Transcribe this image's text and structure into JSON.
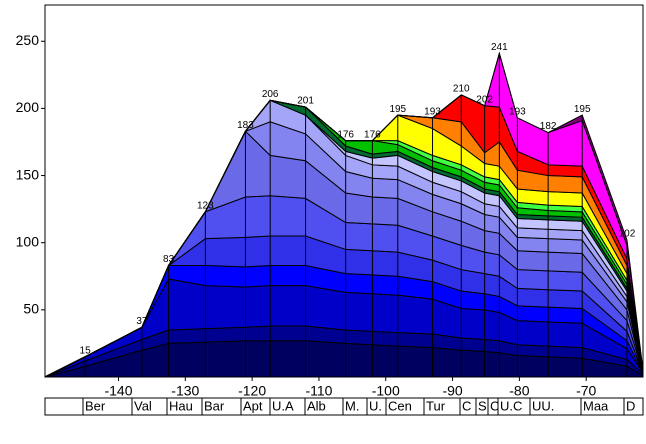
{
  "chart_data": {
    "type": "stacked_area",
    "x": [
      -151,
      -145,
      -136.5,
      -132.5,
      -127,
      -121,
      -117.3,
      -112,
      -106,
      -102,
      -98.2,
      -93,
      -88.7,
      -85.2,
      -83,
      -80.3,
      -75.7,
      -70.6,
      -63.9,
      -61.5
    ],
    "total_labels": [
      null,
      15,
      37,
      83,
      123,
      183,
      206,
      201,
      176,
      176,
      195,
      193,
      210,
      202,
      241,
      193,
      182,
      195,
      102,
      null
    ],
    "series": [
      {
        "color": "#000060",
        "values": [
          0,
          8,
          20,
          25,
          26,
          27,
          27,
          27,
          25,
          24,
          23,
          22,
          20,
          19,
          18,
          16,
          15,
          14,
          8,
          1
        ]
      },
      {
        "color": "#000090",
        "values": [
          0,
          4,
          8,
          10,
          10,
          10,
          11,
          11,
          10,
          10,
          10,
          10,
          9,
          9,
          9,
          8,
          8,
          8,
          5,
          1
        ]
      },
      {
        "color": "#0000c8",
        "values": [
          0,
          3,
          9,
          38,
          32,
          30,
          30,
          30,
          28,
          28,
          28,
          26,
          22,
          22,
          21,
          18,
          18,
          18,
          8,
          1
        ]
      },
      {
        "color": "#0000ff",
        "values": [
          0,
          0,
          0,
          10,
          15,
          15,
          15,
          15,
          14,
          14,
          14,
          13,
          13,
          12,
          12,
          11,
          11,
          11,
          6,
          0
        ]
      },
      {
        "color": "#3030e8",
        "values": [
          0,
          0,
          0,
          0,
          20,
          22,
          22,
          22,
          18,
          18,
          18,
          16,
          16,
          15,
          15,
          13,
          13,
          13,
          7,
          0
        ]
      },
      {
        "color": "#5050f0",
        "values": [
          0,
          0,
          0,
          0,
          20,
          30,
          30,
          28,
          20,
          20,
          20,
          18,
          18,
          16,
          16,
          14,
          14,
          14,
          8,
          0
        ]
      },
      {
        "color": "#6a6ae8",
        "values": [
          0,
          0,
          0,
          0,
          0,
          49,
          30,
          28,
          22,
          20,
          20,
          18,
          18,
          16,
          16,
          14,
          14,
          14,
          8,
          0
        ]
      },
      {
        "color": "#8484f0",
        "values": [
          0,
          0,
          0,
          0,
          0,
          0,
          25,
          20,
          16,
          14,
          14,
          13,
          13,
          12,
          12,
          10,
          10,
          10,
          6,
          0
        ]
      },
      {
        "color": "#a4a4f8",
        "values": [
          0,
          0,
          0,
          0,
          0,
          0,
          16,
          14,
          12,
          10,
          10,
          9,
          9,
          8,
          8,
          7,
          7,
          7,
          4,
          0
        ]
      },
      {
        "color": "#c4c4ff",
        "values": [
          0,
          0,
          0,
          0,
          0,
          0,
          0,
          0,
          3,
          5,
          8,
          8,
          8,
          8,
          8,
          7,
          7,
          7,
          4,
          0
        ]
      },
      {
        "color": "#006a30",
        "values": [
          0,
          0,
          0,
          0,
          0,
          0,
          0,
          6,
          4,
          3,
          3,
          3,
          3,
          3,
          3,
          3,
          3,
          3,
          2,
          0
        ]
      },
      {
        "color": "#00c000",
        "values": [
          0,
          0,
          0,
          0,
          0,
          0,
          0,
          0,
          4,
          10,
          5,
          5,
          5,
          5,
          5,
          5,
          4,
          4,
          3,
          0
        ]
      },
      {
        "color": "#40ff40",
        "values": [
          0,
          0,
          0,
          0,
          0,
          0,
          0,
          0,
          0,
          0,
          3,
          4,
          4,
          4,
          4,
          4,
          4,
          4,
          3,
          0
        ]
      },
      {
        "color": "#ffff00",
        "values": [
          0,
          0,
          0,
          0,
          0,
          0,
          0,
          0,
          0,
          0,
          19,
          20,
          14,
          10,
          10,
          10,
          10,
          10,
          5,
          0
        ]
      },
      {
        "color": "#ff8000",
        "values": [
          0,
          0,
          0,
          0,
          0,
          0,
          0,
          0,
          0,
          0,
          0,
          8,
          18,
          8,
          18,
          14,
          12,
          12,
          6,
          0
        ]
      },
      {
        "color": "#ff0000",
        "values": [
          0,
          0,
          0,
          0,
          0,
          0,
          0,
          0,
          0,
          0,
          0,
          0,
          20,
          35,
          26,
          14,
          8,
          8,
          5,
          0
        ]
      },
      {
        "color": "#ff00ff",
        "values": [
          0,
          0,
          0,
          0,
          0,
          0,
          0,
          0,
          0,
          0,
          0,
          0,
          0,
          0,
          40,
          25,
          24,
          34,
          10,
          1
        ]
      },
      {
        "color": "#800080",
        "values": [
          0,
          0,
          0,
          0,
          0,
          0,
          0,
          0,
          0,
          0,
          0,
          0,
          0,
          0,
          0,
          0,
          0,
          4,
          4,
          1
        ]
      }
    ],
    "xlim": [
      -151,
      -61.5
    ],
    "ylim": [
      0,
      277
    ],
    "xticks": [
      -140,
      -130,
      -120,
      -110,
      -100,
      -90,
      -80,
      -70
    ],
    "yticks": [
      50,
      100,
      150,
      200,
      250
    ],
    "stages": [
      "Ber",
      "Val",
      "Hau",
      "Bar",
      "Apt",
      "U.A",
      "Alb",
      "M.",
      "U.",
      "Cen",
      "Tur",
      "C",
      "S",
      "C",
      "U.C",
      "UU.",
      "Maa",
      "D"
    ]
  }
}
